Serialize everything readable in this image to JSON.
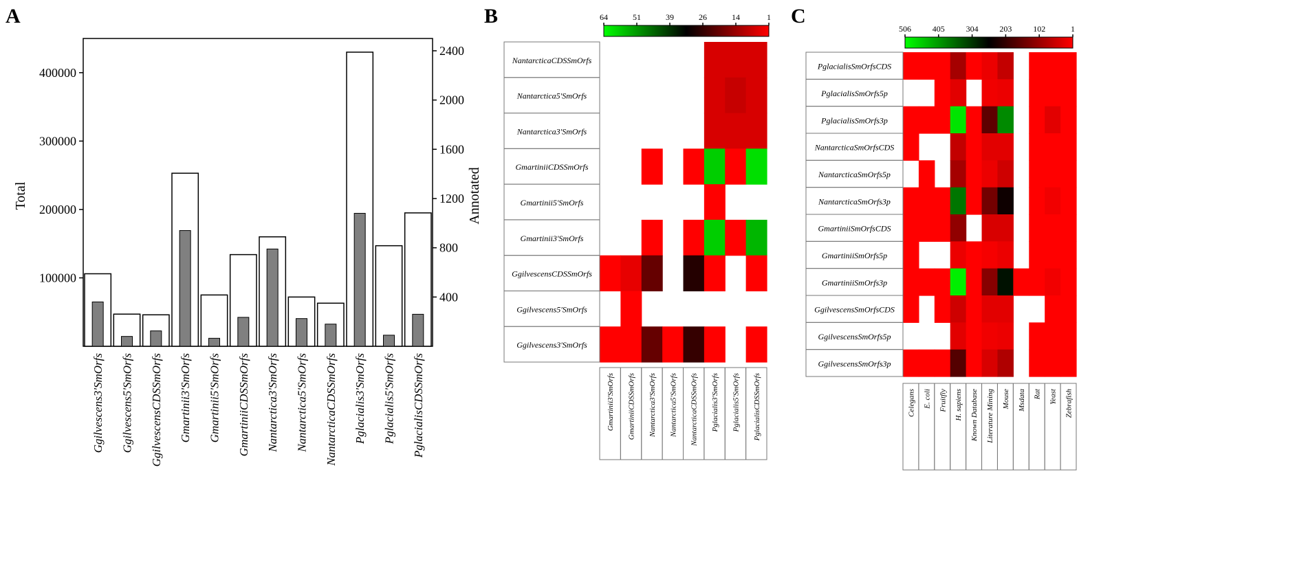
{
  "panel_labels": {
    "a": "A",
    "b": "B",
    "c": "C"
  },
  "chart_data": [
    {
      "panel": "A",
      "type": "bar",
      "categories": [
        "Ggilvescens3'SmOrfs",
        "Ggilvescens5'SmOrfs",
        "GgilvescensCDSSmOrfs",
        "Gmartinii3'SmOrfs",
        "Gmartinii5'SmOrfs",
        "GmartiniiCDSSmOrfs",
        "Nantarctica3'SmOrfs",
        "Nantarctica5'SmOrfs",
        "NantarcticaCDSSmOrfs",
        "Pglacialis3'SmOrfs",
        "Pglacialis5'SmOrfs",
        "PglacialisCDSSmOrfs"
      ],
      "series": [
        {
          "name": "Total",
          "axis": "left",
          "color": "#ffffff",
          "values": [
            106000,
            47000,
            46000,
            253000,
            75000,
            134000,
            160000,
            72000,
            63000,
            430000,
            147000,
            195000
          ]
        },
        {
          "name": "Annotated",
          "axis": "right",
          "color": "#808080",
          "values": [
            360,
            80,
            125,
            940,
            65,
            235,
            790,
            225,
            180,
            1080,
            90,
            260
          ]
        }
      ],
      "ylabel": "Total",
      "y2label": "Annotated",
      "ylim": [
        0,
        450000
      ],
      "yticks": [
        100000,
        200000,
        300000,
        400000
      ],
      "ytick_labels": [
        "100000",
        "200000",
        "300000",
        "400000"
      ],
      "y2lim": [
        0,
        2500
      ],
      "y2ticks": [
        400,
        800,
        1200,
        1600,
        2000,
        2400
      ],
      "y2tick_labels": [
        "400",
        "800",
        "1200",
        "1600",
        "2000",
        "2400"
      ]
    },
    {
      "panel": "B",
      "type": "heatmap",
      "rows": [
        "NantarcticaCDSSmOrfs",
        "Nantarctica5'SmOrfs",
        "Nantarctica3'SmOrfs",
        "GmartiniiCDSSmOrfs",
        "Gmartinii5'SmOrfs",
        "Gmartinii3'SmOrfs",
        "GgilvescensCDSSmOrfs",
        "Ggilvescens5'SmOrfs",
        "Ggilvescens3'SmOrfs"
      ],
      "columns": [
        "Gmartinii3'SmOrfs",
        "GmartiniiCDSSmOrfs",
        "Nantarctica3'SmOrfs",
        "Nantarctica5'SmOrfs",
        "NantarcticaCDSSmOrfs",
        "Pglacialis3'SmOrfs",
        "Pglacialis5'SmOrfs",
        "PglacialisCDSSmOrfs"
      ],
      "colorbar": {
        "labels": [
          "64",
          "51",
          "39",
          "26",
          "14",
          "1"
        ],
        "min": 1,
        "max": 64,
        "stops": [
          "#00ff00",
          "#000000",
          "#ff0000"
        ]
      },
      "values": [
        [
          null,
          null,
          null,
          null,
          null,
          6,
          6,
          6
        ],
        [
          null,
          null,
          null,
          null,
          null,
          6,
          8,
          6
        ],
        [
          null,
          null,
          null,
          null,
          null,
          6,
          6,
          6
        ],
        [
          null,
          null,
          1,
          null,
          1,
          58,
          1,
          60
        ],
        [
          null,
          null,
          null,
          null,
          null,
          1,
          null,
          null
        ],
        [
          null,
          null,
          1,
          null,
          1,
          58,
          1,
          55
        ],
        [
          1,
          4,
          20,
          null,
          28,
          1,
          null,
          1
        ],
        [
          null,
          1,
          null,
          null,
          null,
          null,
          null,
          null
        ],
        [
          1,
          1,
          20,
          1,
          26,
          1,
          null,
          1
        ]
      ]
    },
    {
      "panel": "C",
      "type": "heatmap",
      "rows": [
        "PglacialisSmOrfsCDS",
        "PglacialisSmOrfs5p",
        "PglacialisSmOrfs3p",
        "NantarcticaSmOrfsCDS",
        "NantarcticaSmOrfs5p",
        "NantarcticaSmOrfs3p",
        "GmartiniiSmOrfsCDS",
        "GmartiniiSmOrfs5p",
        "GmartiniiSmOrfs3p",
        "GgilvescensSmOrfsCDS",
        "GgilvescensSmOrfs5p",
        "GgilvescensSmOrfs3p"
      ],
      "columns": [
        "Celegans",
        "E. coli",
        "Fruitfly",
        "H. sapiens",
        "Known Database",
        "Literature Mining",
        "Mouse",
        "Msdata",
        "Rat",
        "Yeast",
        "Zebrafish"
      ],
      "colorbar": {
        "labels": [
          "506",
          "405",
          "304",
          "203",
          "102",
          "1"
        ],
        "min": 1,
        "max": 506,
        "stops": [
          "#00ff00",
          "#000000",
          "#ff0000"
        ]
      },
      "values": [
        [
          1,
          1,
          1,
          90,
          1,
          20,
          60,
          null,
          1,
          1,
          1
        ],
        [
          null,
          null,
          1,
          30,
          null,
          15,
          20,
          null,
          1,
          1,
          1
        ],
        [
          1,
          1,
          1,
          480,
          1,
          160,
          390,
          null,
          1,
          30,
          1
        ],
        [
          1,
          null,
          null,
          60,
          1,
          30,
          30,
          null,
          1,
          1,
          1
        ],
        [
          null,
          1,
          null,
          90,
          1,
          20,
          50,
          null,
          1,
          1,
          1
        ],
        [
          1,
          1,
          1,
          370,
          1,
          140,
          240,
          null,
          1,
          15,
          1
        ],
        [
          1,
          1,
          1,
          110,
          null,
          40,
          40,
          null,
          1,
          1,
          1
        ],
        [
          1,
          null,
          null,
          20,
          1,
          10,
          20,
          null,
          1,
          1,
          1
        ],
        [
          1,
          1,
          1,
          490,
          1,
          120,
          270,
          1,
          1,
          15,
          1
        ],
        [
          1,
          null,
          1,
          50,
          1,
          30,
          30,
          null,
          null,
          1,
          1
        ],
        [
          null,
          null,
          null,
          30,
          1,
          15,
          20,
          null,
          1,
          1,
          1
        ],
        [
          1,
          1,
          1,
          170,
          1,
          40,
          80,
          null,
          1,
          1,
          1
        ]
      ]
    }
  ]
}
